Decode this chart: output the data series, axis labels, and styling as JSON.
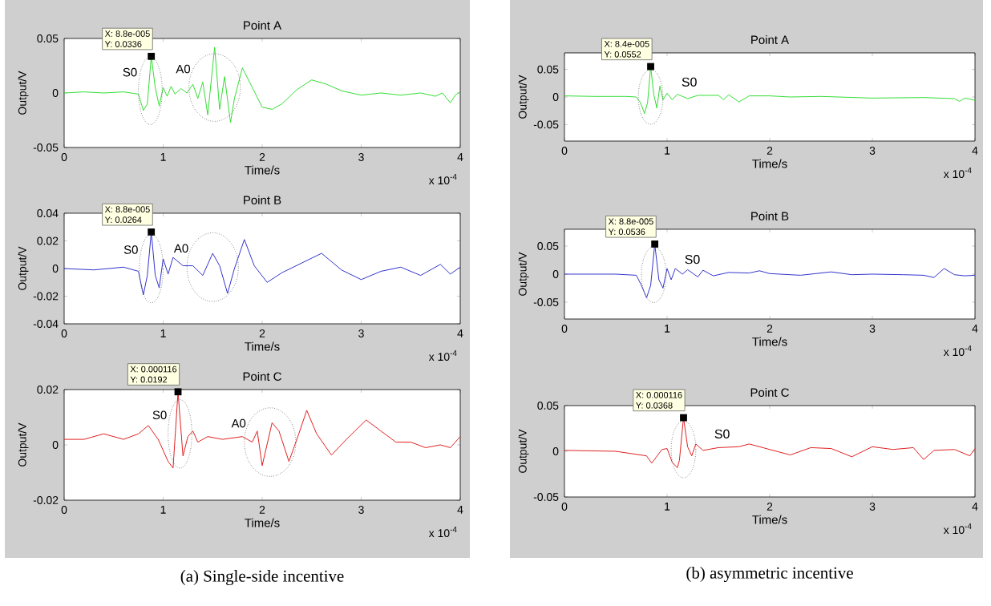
{
  "chart_data": [
    {
      "type": "line",
      "title": "Point A",
      "xlabel": "Time/s",
      "ylabel": "Output/V",
      "color": "#33dd33",
      "xlim": [
        0,
        4
      ],
      "ylim": [
        -0.05,
        0.05
      ],
      "xticks": [
        0,
        1,
        2,
        3,
        4
      ],
      "yticks": [
        -0.05,
        0,
        0.05
      ],
      "x": [
        0,
        0.2,
        0.4,
        0.6,
        0.75,
        0.8,
        0.84,
        0.88,
        0.92,
        0.96,
        1.0,
        1.04,
        1.08,
        1.12,
        1.18,
        1.24,
        1.3,
        1.35,
        1.4,
        1.45,
        1.52,
        1.57,
        1.62,
        1.68,
        1.72,
        1.8,
        1.9,
        2.0,
        2.1,
        2.2,
        2.35,
        2.5,
        2.65,
        2.8,
        3.0,
        3.2,
        3.4,
        3.6,
        3.75,
        3.82,
        3.9,
        3.95,
        4.0
      ],
      "values": [
        0,
        0.001,
        0,
        0.001,
        -0.001,
        -0.016,
        -0.01,
        0.0336,
        0.005,
        -0.012,
        0.005,
        -0.003,
        0.006,
        -0.001,
        0.004,
        0,
        0.008,
        -0.005,
        0.01,
        -0.02,
        0.042,
        -0.015,
        0.015,
        -0.027,
        -0.005,
        0.023,
        0.005,
        -0.013,
        -0.015,
        -0.01,
        0.003,
        0.012,
        0.008,
        0.002,
        -0.002,
        0,
        -0.002,
        0,
        -0.003,
        0,
        -0.009,
        -0.002,
        0.001
      ],
      "annotations": [
        {
          "text": "X: 8.8e-005",
          "x": 0.88,
          "y": 0.0336
        },
        {
          "text": "Y: 0.0336",
          "x": 0.88,
          "y": 0.0336
        },
        {
          "text": "S0",
          "x": 0.87,
          "y": 0.002
        },
        {
          "text": "A0",
          "x": 1.52,
          "y": 0.005
        },
        "x 10$^{-4}$"
      ]
    },
    {
      "type": "line",
      "title": "Point B",
      "xlabel": "Time/s",
      "ylabel": "Output/V",
      "color": "#3333cc",
      "xlim": [
        0,
        4
      ],
      "ylim": [
        -0.04,
        0.04
      ],
      "xticks": [
        0,
        1,
        2,
        3,
        4
      ],
      "yticks": [
        -0.04,
        -0.02,
        0,
        0.02,
        0.04
      ],
      "x": [
        0,
        0.3,
        0.6,
        0.75,
        0.8,
        0.84,
        0.88,
        0.92,
        0.96,
        1.0,
        1.05,
        1.1,
        1.2,
        1.3,
        1.4,
        1.5,
        1.57,
        1.65,
        1.72,
        1.82,
        1.92,
        2.05,
        2.2,
        2.4,
        2.6,
        2.8,
        3.0,
        3.2,
        3.4,
        3.6,
        3.8,
        3.9,
        4.0
      ],
      "values": [
        0,
        -0.001,
        0.001,
        -0.002,
        -0.019,
        -0.005,
        0.0264,
        -0.005,
        -0.014,
        0.007,
        -0.004,
        0.008,
        0.002,
        0.002,
        -0.005,
        0.011,
        0.002,
        -0.018,
        0,
        0.021,
        0.002,
        -0.01,
        -0.003,
        0.004,
        0.011,
        -0.001,
        -0.008,
        -0.002,
        0.001,
        -0.005,
        0.003,
        -0.004,
        0.001
      ],
      "annotations": [
        {
          "text": "X: 8.8e-005",
          "x": 0.88,
          "y": 0.0264
        },
        {
          "text": "Y: 0.0264",
          "x": 0.88,
          "y": 0.0264
        },
        {
          "text": "S0",
          "x": 0.88,
          "y": 0
        },
        {
          "text": "A0",
          "x": 1.5,
          "y": 0.001
        },
        "x 10$^{-4}$"
      ]
    },
    {
      "type": "line",
      "title": "Point C",
      "xlabel": "Time/s",
      "ylabel": "Output/V",
      "subtitle": "(a)  Single-side incentive",
      "color": "#e02020",
      "xlim": [
        0,
        4
      ],
      "ylim": [
        -0.02,
        0.02
      ],
      "xticks": [
        0,
        1,
        2,
        3,
        4
      ],
      "yticks": [
        -0.02,
        0,
        0.02
      ],
      "x": [
        0,
        0.2,
        0.4,
        0.6,
        0.75,
        0.85,
        0.95,
        1.05,
        1.1,
        1.15,
        1.2,
        1.25,
        1.3,
        1.35,
        1.45,
        1.6,
        1.8,
        1.9,
        1.95,
        2.0,
        2.1,
        2.17,
        2.27,
        2.37,
        2.45,
        2.55,
        2.7,
        2.85,
        3.05,
        3.2,
        3.35,
        3.5,
        3.65,
        3.8,
        3.9,
        4.0
      ],
      "values": [
        0.002,
        0.002,
        0.004,
        0.002,
        0.004,
        0.007,
        0.002,
        -0.006,
        -0.0084,
        0.0192,
        -0.004,
        0.003,
        0.005,
        0.001,
        0.003,
        0.002,
        0.003,
        0.001,
        0.005,
        -0.0075,
        0.008,
        0.005,
        -0.006,
        0.004,
        0.0125,
        0.004,
        -0.0037,
        0.002,
        0.009,
        0.005,
        0.001,
        0.001,
        -0.001,
        0,
        -0.001,
        0.003
      ],
      "annotations": [
        {
          "text": "X: 0.000116",
          "x": 1.15,
          "y": 0.0192
        },
        {
          "text": "Y: 0.0192",
          "x": 1.15,
          "y": 0.0192
        },
        {
          "text": "S0",
          "x": 1.17,
          "y": 0.004
        },
        {
          "text": "A0",
          "x": 2.08,
          "y": 0.001
        },
        "x 10$^{-4}$"
      ]
    },
    {
      "type": "line",
      "title": "Point A",
      "xlabel": "Time/s",
      "ylabel": "Output/V",
      "color": "#33dd33",
      "xlim": [
        0,
        4
      ],
      "ylim": [
        -0.08,
        0.08
      ],
      "xticks": [
        0,
        1,
        2,
        3,
        4
      ],
      "yticks": [
        -0.05,
        0,
        0.05
      ],
      "x": [
        0,
        0.3,
        0.6,
        0.7,
        0.74,
        0.78,
        0.81,
        0.84,
        0.87,
        0.9,
        0.93,
        0.96,
        1.0,
        1.05,
        1.1,
        1.2,
        1.3,
        1.5,
        1.55,
        1.6,
        1.7,
        1.8,
        2.0,
        2.2,
        2.5,
        3.0,
        3.5,
        3.8,
        3.85,
        3.9,
        4.0
      ],
      "values": [
        0.002,
        0.001,
        0.001,
        0,
        -0.01,
        -0.03,
        -0.01,
        0.0552,
        0.005,
        -0.02,
        0.02,
        -0.005,
        0.007,
        -0.005,
        0.005,
        -0.003,
        0.003,
        0.003,
        -0.005,
        0.004,
        -0.009,
        0.002,
        0.002,
        0,
        0.001,
        -0.002,
        -0.001,
        -0.003,
        -0.008,
        -0.002,
        -0.006
      ],
      "annotations": [
        {
          "text": "X: 8.4e-005",
          "x": 0.84,
          "y": 0.0552
        },
        {
          "text": "Y: 0.0552",
          "x": 0.84,
          "y": 0.0552
        },
        {
          "text": "S0",
          "x": 0.84,
          "y": 0
        },
        "x 10$^{-4}$"
      ]
    },
    {
      "type": "line",
      "title": "Point B",
      "xlabel": "Time/s",
      "ylabel": "Output/V",
      "color": "#3333cc",
      "xlim": [
        0,
        4
      ],
      "ylim": [
        -0.08,
        0.08
      ],
      "xticks": [
        0,
        1,
        2,
        3,
        4
      ],
      "yticks": [
        -0.05,
        0,
        0.05
      ],
      "x": [
        0,
        0.5,
        0.7,
        0.75,
        0.8,
        0.84,
        0.88,
        0.92,
        0.96,
        1.0,
        1.04,
        1.08,
        1.15,
        1.2,
        1.3,
        1.35,
        1.45,
        1.6,
        1.8,
        1.9,
        2.0,
        2.3,
        2.6,
        2.8,
        3.0,
        3.3,
        3.5,
        3.6,
        3.7,
        3.8,
        3.9,
        4.0
      ],
      "values": [
        0,
        0,
        -0.002,
        -0.02,
        -0.042,
        -0.02,
        0.0536,
        -0.01,
        -0.025,
        0.01,
        -0.01,
        0.01,
        0,
        0.008,
        -0.005,
        0.007,
        -0.003,
        0.003,
        0.002,
        0.006,
        0.001,
        -0.002,
        0.004,
        -0.001,
        0,
        -0.001,
        -0.002,
        -0.006,
        0.01,
        -0.001,
        -0.003,
        -0.002
      ],
      "annotations": [
        {
          "text": "X: 8.8e-005",
          "x": 0.88,
          "y": 0.0536
        },
        {
          "text": "Y: 0.0536",
          "x": 0.88,
          "y": 0.0536
        },
        {
          "text": "S0",
          "x": 0.87,
          "y": -0.001
        },
        "x 10$^{-4}$"
      ]
    },
    {
      "type": "line",
      "title": "Point C",
      "xlabel": "Time/s",
      "ylabel": "Output/V",
      "subtitle": "(b)  asymmetric incentive",
      "color": "#e02020",
      "xlim": [
        0,
        4
      ],
      "ylim": [
        -0.05,
        0.05
      ],
      "xticks": [
        0,
        1,
        2,
        3,
        4
      ],
      "yticks": [
        -0.05,
        0,
        0.05
      ],
      "x": [
        0,
        0.5,
        0.8,
        0.85,
        0.95,
        1.0,
        1.05,
        1.1,
        1.12,
        1.16,
        1.2,
        1.24,
        1.28,
        1.35,
        1.5,
        1.7,
        1.8,
        2.0,
        2.2,
        2.4,
        2.6,
        2.8,
        3.0,
        3.2,
        3.4,
        3.5,
        3.6,
        3.8,
        3.95,
        4.0
      ],
      "values": [
        0.001,
        0,
        -0.005,
        -0.013,
        0.002,
        0.003,
        -0.012,
        -0.018,
        -0.01,
        0.0368,
        0.005,
        -0.005,
        0.008,
        0.001,
        0.004,
        0.005,
        0.008,
        0.002,
        -0.004,
        0.004,
        0.003,
        -0.006,
        0.005,
        0.002,
        0.004,
        -0.009,
        0.001,
        0.002,
        -0.005,
        0.003
      ],
      "annotations": [
        {
          "text": "X: 0.000116",
          "x": 1.16,
          "y": 0.0368
        },
        {
          "text": "Y: 0.0368",
          "x": 1.16,
          "y": 0.0368
        },
        {
          "text": "S0",
          "x": 1.16,
          "y": 0.002
        },
        "x 10$^{-4}$"
      ]
    }
  ]
}
